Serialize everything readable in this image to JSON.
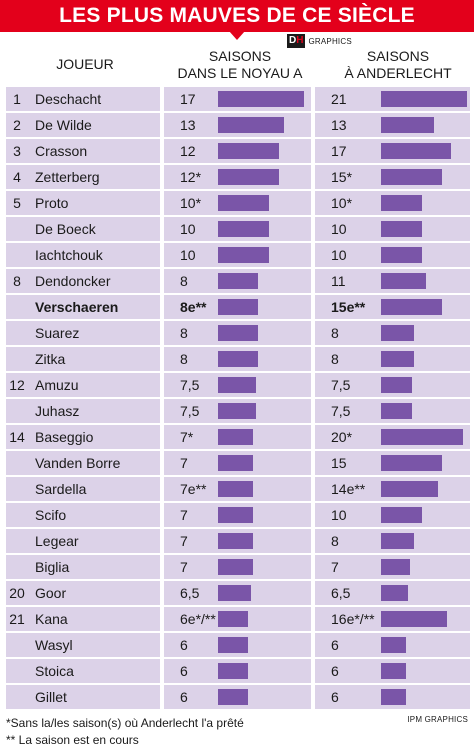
{
  "banner": {
    "title": "LES PLUS MAUVES DE CE SIÈCLE"
  },
  "brand": {
    "logo_d": "D",
    "logo_h": "H",
    "logo_label": "GRAPHICS",
    "credit": "IPM GRAPHICS"
  },
  "colors": {
    "banner": "#e3001b",
    "bar": "#7a55a8",
    "cell": "#dcd2e8"
  },
  "chart_data": {
    "type": "table",
    "columns": {
      "player": "JOUEUR",
      "noyau_line1": "SAISONS",
      "noyau_line2": "DANS LE NOYAU A",
      "anderlecht_line1": "SAISONS",
      "anderlecht_line2": "À ANDERLECHT"
    },
    "rows": [
      {
        "rank": "1",
        "player": "Deschacht",
        "noyau": 17,
        "noyau_label": "17",
        "anderlecht": 21,
        "anderlecht_label": "21"
      },
      {
        "rank": "2",
        "player": "De Wilde",
        "noyau": 13,
        "noyau_label": "13",
        "anderlecht": 13,
        "anderlecht_label": "13"
      },
      {
        "rank": "3",
        "player": "Crasson",
        "noyau": 12,
        "noyau_label": "12",
        "anderlecht": 17,
        "anderlecht_label": "17"
      },
      {
        "rank": "4",
        "player": "Zetterberg",
        "noyau": 12,
        "noyau_label": "12*",
        "anderlecht": 15,
        "anderlecht_label": "15*"
      },
      {
        "rank": "5",
        "player": "Proto",
        "noyau": 10,
        "noyau_label": "10*",
        "anderlecht": 10,
        "anderlecht_label": "10*"
      },
      {
        "rank": "",
        "player": "De Boeck",
        "noyau": 10,
        "noyau_label": "10",
        "anderlecht": 10,
        "anderlecht_label": "10"
      },
      {
        "rank": "",
        "player": "Iachtchouk",
        "noyau": 10,
        "noyau_label": "10",
        "anderlecht": 10,
        "anderlecht_label": "10"
      },
      {
        "rank": "8",
        "player": "Dendoncker",
        "noyau": 8,
        "noyau_label": "8",
        "anderlecht": 11,
        "anderlecht_label": "11"
      },
      {
        "rank": "",
        "player": "Verschaeren",
        "noyau": 8,
        "noyau_label": "8e**",
        "anderlecht": 15,
        "anderlecht_label": "15e**",
        "bold": true
      },
      {
        "rank": "",
        "player": "Suarez",
        "noyau": 8,
        "noyau_label": "8",
        "anderlecht": 8,
        "anderlecht_label": "8"
      },
      {
        "rank": "",
        "player": "Zitka",
        "noyau": 8,
        "noyau_label": "8",
        "anderlecht": 8,
        "anderlecht_label": "8"
      },
      {
        "rank": "12",
        "player": "Amuzu",
        "noyau": 7.5,
        "noyau_label": "7,5",
        "anderlecht": 7.5,
        "anderlecht_label": "7,5"
      },
      {
        "rank": "",
        "player": "Juhasz",
        "noyau": 7.5,
        "noyau_label": "7,5",
        "anderlecht": 7.5,
        "anderlecht_label": "7,5"
      },
      {
        "rank": "14",
        "player": "Baseggio",
        "noyau": 7,
        "noyau_label": "7*",
        "anderlecht": 20,
        "anderlecht_label": "20*"
      },
      {
        "rank": "",
        "player": "Vanden Borre",
        "noyau": 7,
        "noyau_label": "7",
        "anderlecht": 15,
        "anderlecht_label": "15"
      },
      {
        "rank": "",
        "player": "Sardella",
        "noyau": 7,
        "noyau_label": "7e**",
        "anderlecht": 14,
        "anderlecht_label": "14e**"
      },
      {
        "rank": "",
        "player": "Scifo",
        "noyau": 7,
        "noyau_label": "7",
        "anderlecht": 10,
        "anderlecht_label": "10"
      },
      {
        "rank": "",
        "player": "Legear",
        "noyau": 7,
        "noyau_label": "7",
        "anderlecht": 8,
        "anderlecht_label": "8"
      },
      {
        "rank": "",
        "player": "Biglia",
        "noyau": 7,
        "noyau_label": "7",
        "anderlecht": 7,
        "anderlecht_label": "7"
      },
      {
        "rank": "20",
        "player": "Goor",
        "noyau": 6.5,
        "noyau_label": "6,5",
        "anderlecht": 6.5,
        "anderlecht_label": "6,5"
      },
      {
        "rank": "21",
        "player": "Kana",
        "noyau": 6,
        "noyau_label": "6e*/**",
        "anderlecht": 16,
        "anderlecht_label": "16e*/**"
      },
      {
        "rank": "",
        "player": "Wasyl",
        "noyau": 6,
        "noyau_label": "6",
        "anderlecht": 6,
        "anderlecht_label": "6"
      },
      {
        "rank": "",
        "player": "Stoica",
        "noyau": 6,
        "noyau_label": "6",
        "anderlecht": 6,
        "anderlecht_label": "6"
      },
      {
        "rank": "",
        "player": "Gillet",
        "noyau": 6,
        "noyau_label": "6",
        "anderlecht": 6,
        "anderlecht_label": "6"
      }
    ],
    "footnotes": [
      "*Sans la/les saison(s) où Anderlecht l'a prêté",
      "** La saison est en cours"
    ]
  }
}
